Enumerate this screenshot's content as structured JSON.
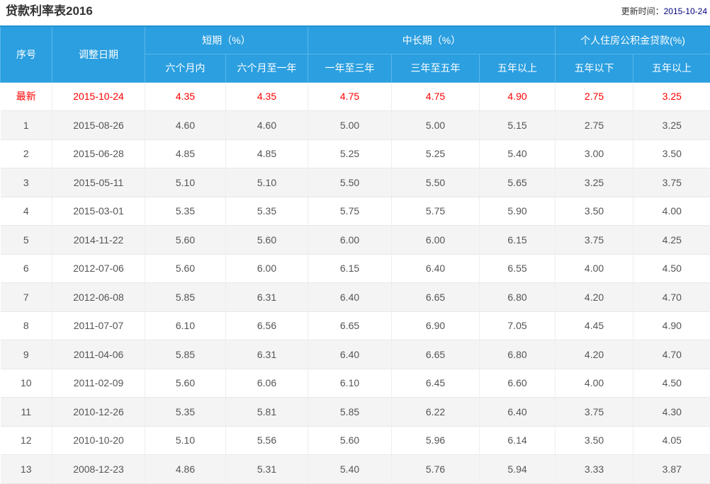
{
  "page": {
    "title": "贷款利率表2016",
    "update_label": "更新时间：",
    "update_date": "2015-10-24"
  },
  "colors": {
    "header_blue": "#2B9FE0",
    "header_separator": "#5cb6e7",
    "latest_red": "#fe0000",
    "row_stripe": "#f4f4f4",
    "body_text": "#555555",
    "update_date_navy": "#000080"
  },
  "table": {
    "columns": {
      "no": "序号",
      "adjust_date": "调整日期",
      "group_short": "短期（%）",
      "group_mid_long": "中长期（%）",
      "group_fund": "个人住房公积金贷款(%)",
      "sub_within_6m": "六个月内",
      "sub_6m_to_1y": "六个月至一年",
      "sub_1y_to_3y": "一年至三年",
      "sub_3y_to_5y": "三年至五年",
      "sub_over_5y": "五年以上",
      "sub_fund_under_5y": "五年以下",
      "sub_fund_over_5y": "五年以上"
    },
    "rows": [
      {
        "no": "最新",
        "date": "2015-10-24",
        "latest": true,
        "values": [
          "4.35",
          "4.35",
          "4.75",
          "4.75",
          "4.90",
          "2.75",
          "3.25"
        ]
      },
      {
        "no": "1",
        "date": "2015-08-26",
        "latest": false,
        "values": [
          "4.60",
          "4.60",
          "5.00",
          "5.00",
          "5.15",
          "2.75",
          "3.25"
        ]
      },
      {
        "no": "2",
        "date": "2015-06-28",
        "latest": false,
        "values": [
          "4.85",
          "4.85",
          "5.25",
          "5.25",
          "5.40",
          "3.00",
          "3.50"
        ]
      },
      {
        "no": "3",
        "date": "2015-05-11",
        "latest": false,
        "values": [
          "5.10",
          "5.10",
          "5.50",
          "5.50",
          "5.65",
          "3.25",
          "3.75"
        ]
      },
      {
        "no": "4",
        "date": "2015-03-01",
        "latest": false,
        "values": [
          "5.35",
          "5.35",
          "5.75",
          "5.75",
          "5.90",
          "3.50",
          "4.00"
        ]
      },
      {
        "no": "5",
        "date": "2014-11-22",
        "latest": false,
        "values": [
          "5.60",
          "5.60",
          "6.00",
          "6.00",
          "6.15",
          "3.75",
          "4.25"
        ]
      },
      {
        "no": "6",
        "date": "2012-07-06",
        "latest": false,
        "values": [
          "5.60",
          "6.00",
          "6.15",
          "6.40",
          "6.55",
          "4.00",
          "4.50"
        ]
      },
      {
        "no": "7",
        "date": "2012-06-08",
        "latest": false,
        "values": [
          "5.85",
          "6.31",
          "6.40",
          "6.65",
          "6.80",
          "4.20",
          "4.70"
        ]
      },
      {
        "no": "8",
        "date": "2011-07-07",
        "latest": false,
        "values": [
          "6.10",
          "6.56",
          "6.65",
          "6.90",
          "7.05",
          "4.45",
          "4.90"
        ]
      },
      {
        "no": "9",
        "date": "2011-04-06",
        "latest": false,
        "values": [
          "5.85",
          "6.31",
          "6.40",
          "6.65",
          "6.80",
          "4.20",
          "4.70"
        ]
      },
      {
        "no": "10",
        "date": "2011-02-09",
        "latest": false,
        "values": [
          "5.60",
          "6.06",
          "6.10",
          "6.45",
          "6.60",
          "4.00",
          "4.50"
        ]
      },
      {
        "no": "11",
        "date": "2010-12-26",
        "latest": false,
        "values": [
          "5.35",
          "5.81",
          "5.85",
          "6.22",
          "6.40",
          "3.75",
          "4.30"
        ]
      },
      {
        "no": "12",
        "date": "2010-10-20",
        "latest": false,
        "values": [
          "5.10",
          "5.56",
          "5.60",
          "5.96",
          "6.14",
          "3.50",
          "4.05"
        ]
      },
      {
        "no": "13",
        "date": "2008-12-23",
        "latest": false,
        "values": [
          "4.86",
          "5.31",
          "5.40",
          "5.76",
          "5.94",
          "3.33",
          "3.87"
        ]
      }
    ]
  }
}
